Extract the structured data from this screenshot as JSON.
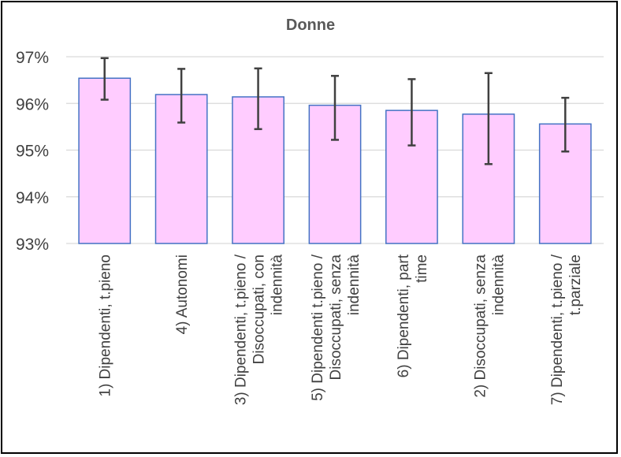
{
  "chart_data": {
    "type": "bar",
    "title": "Donne",
    "xlabel": "",
    "ylabel": "",
    "ylim": [
      0.93,
      0.97
    ],
    "yticks": [
      "93%",
      "94%",
      "95%",
      "96%",
      "97%"
    ],
    "grid": true,
    "legend": "none",
    "categories": [
      "1) Dipendenti, t.pieno",
      "4) Autonomi",
      "3) Dipendenti, t.pieno / Disoccupati, con indennità",
      "5) Dipendenti t.pieno / Disoccupati, senza indennità",
      "6) Dipendenti, part time",
      "2) Disoccupati, senza indennità",
      "7) Dipendenti, t.pieno / t.parziale"
    ],
    "category_lines": [
      [
        "1) Dipendenti, t.pieno"
      ],
      [
        "4) Autonomi"
      ],
      [
        "3) Dipendenti, t.pieno /",
        "Disoccupati, con",
        "indennità"
      ],
      [
        "5) Dipendenti t.pieno /",
        "Disoccupati, senza",
        "indennità"
      ],
      [
        "6) Dipendenti, part",
        "time"
      ],
      [
        "2) Disoccupati, senza",
        "indennità"
      ],
      [
        "7) Dipendenti, t.pieno /",
        "t.parziale"
      ]
    ],
    "values": [
      0.9654,
      0.9619,
      0.9614,
      0.9596,
      0.9585,
      0.9577,
      0.9556
    ],
    "error_low": [
      0.9608,
      0.9559,
      0.9545,
      0.9522,
      0.951,
      0.947,
      0.9497
    ],
    "error_high": [
      0.9697,
      0.9674,
      0.9675,
      0.9659,
      0.9652,
      0.9665,
      0.9612
    ],
    "colors": {
      "bar_fill": "#ffccff",
      "bar_stroke": "#4472c4",
      "error_bar": "#404040",
      "grid": "#d9d9d9"
    }
  }
}
